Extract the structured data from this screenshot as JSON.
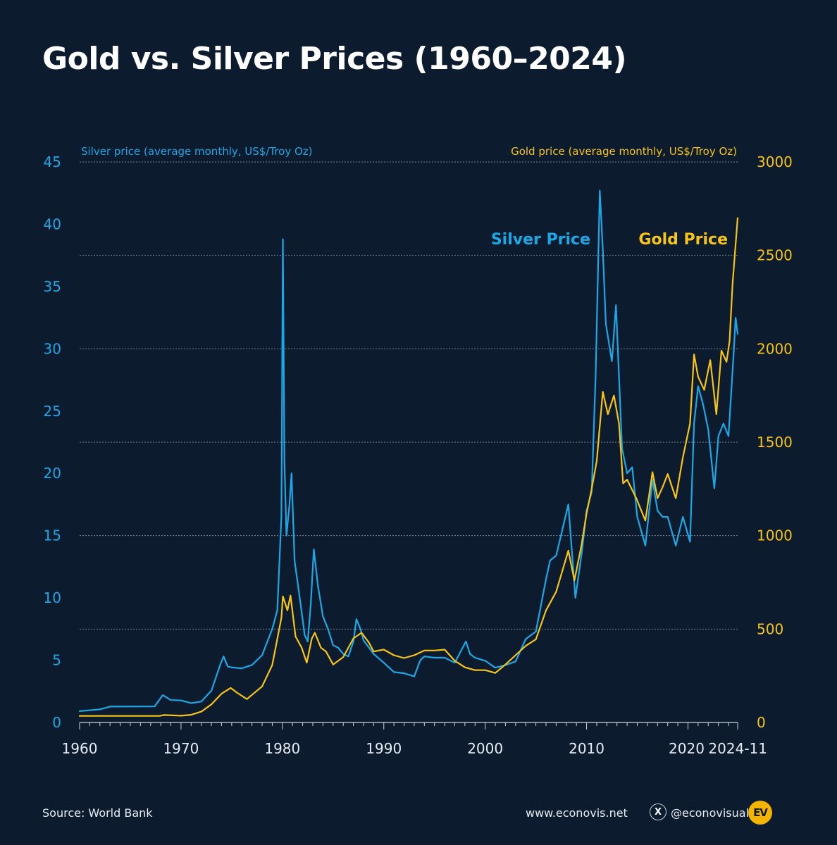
{
  "title": "Gold vs. Silver Prices (1960–2024)",
  "footer": {
    "source": "Source: World Bank",
    "website": "www.econovis.net",
    "x_glyph": "X",
    "handle": "@econovisuals",
    "logo_text": "EV"
  },
  "colors": {
    "background": "#0c1b2e",
    "silver": "#1ca8e6",
    "gold": "#f7c417",
    "grid": "#7a8796"
  },
  "chart_data": {
    "type": "line",
    "x_range": [
      1960,
      2024.9
    ],
    "x_ticks": [
      1960,
      1970,
      1980,
      1990,
      2000,
      2010,
      2020,
      2024.9
    ],
    "x_tick_labels": [
      "1960",
      "1970",
      "1980",
      "1990",
      "2000",
      "2010",
      "2020",
      "2024-11"
    ],
    "grid": "horizontal dashed",
    "left_axis": {
      "label": "Silver price (average monthly, US$/Troy Oz)",
      "range": [
        0,
        45
      ],
      "ticks": [
        0,
        5,
        10,
        15,
        20,
        25,
        30,
        35,
        40,
        45
      ]
    },
    "right_axis": {
      "label": "Gold price (average monthly, US$/Troy Oz)",
      "range": [
        0,
        3000
      ],
      "ticks": [
        0,
        500,
        1000,
        1500,
        2000,
        2500,
        3000
      ]
    },
    "series": [
      {
        "name": "Silver Price",
        "axis": "left",
        "color": "#1ca8e6",
        "points": [
          [
            1960,
            0.91
          ],
          [
            1962,
            1.05
          ],
          [
            1963,
            1.28
          ],
          [
            1967.4,
            1.29
          ],
          [
            1968.2,
            2.2
          ],
          [
            1969,
            1.8
          ],
          [
            1970,
            1.77
          ],
          [
            1971,
            1.55
          ],
          [
            1972,
            1.68
          ],
          [
            1973,
            2.56
          ],
          [
            1973.9,
            4.7
          ],
          [
            1974.2,
            5.3
          ],
          [
            1974.6,
            4.5
          ],
          [
            1975,
            4.42
          ],
          [
            1976,
            4.35
          ],
          [
            1977,
            4.62
          ],
          [
            1978,
            5.4
          ],
          [
            1979,
            7.5
          ],
          [
            1979.5,
            9.0
          ],
          [
            1979.9,
            16.5
          ],
          [
            1980.05,
            38.8
          ],
          [
            1980.2,
            21.0
          ],
          [
            1980.4,
            15.0
          ],
          [
            1980.7,
            17.5
          ],
          [
            1980.9,
            20.0
          ],
          [
            1981.2,
            13.0
          ],
          [
            1981.8,
            9.5
          ],
          [
            1982.2,
            7.0
          ],
          [
            1982.5,
            6.5
          ],
          [
            1982.8,
            9.5
          ],
          [
            1983.1,
            13.9
          ],
          [
            1983.5,
            11.0
          ],
          [
            1984,
            8.5
          ],
          [
            1984.5,
            7.5
          ],
          [
            1985,
            6.2
          ],
          [
            1985.5,
            6.0
          ],
          [
            1986,
            5.5
          ],
          [
            1986.5,
            5.3
          ],
          [
            1987,
            6.5
          ],
          [
            1987.3,
            8.3
          ],
          [
            1987.7,
            7.5
          ],
          [
            1988,
            6.6
          ],
          [
            1989,
            5.5
          ],
          [
            1990,
            4.8
          ],
          [
            1991,
            4.05
          ],
          [
            1992,
            3.95
          ],
          [
            1993,
            3.7
          ],
          [
            1993.6,
            5.0
          ],
          [
            1994,
            5.3
          ],
          [
            1995,
            5.2
          ],
          [
            1996,
            5.2
          ],
          [
            1997,
            4.8
          ],
          [
            1998.1,
            6.5
          ],
          [
            1998.5,
            5.5
          ],
          [
            1999,
            5.2
          ],
          [
            2000,
            4.95
          ],
          [
            2001,
            4.4
          ],
          [
            2002,
            4.6
          ],
          [
            2003,
            4.9
          ],
          [
            2004,
            6.7
          ],
          [
            2005,
            7.3
          ],
          [
            2006,
            11.5
          ],
          [
            2006.4,
            13.0
          ],
          [
            2007,
            13.4
          ],
          [
            2008.2,
            17.5
          ],
          [
            2008.9,
            10.0
          ],
          [
            2009.5,
            13.5
          ],
          [
            2010,
            17.0
          ],
          [
            2010.5,
            18.5
          ],
          [
            2010.9,
            28.0
          ],
          [
            2011.3,
            42.7
          ],
          [
            2011.6,
            38.0
          ],
          [
            2011.9,
            32.0
          ],
          [
            2012.5,
            29.0
          ],
          [
            2012.9,
            33.5
          ],
          [
            2013.5,
            22.0
          ],
          [
            2014,
            20.0
          ],
          [
            2014.5,
            20.5
          ],
          [
            2015,
            16.5
          ],
          [
            2015.8,
            14.2
          ],
          [
            2016.5,
            19.5
          ],
          [
            2017,
            17.0
          ],
          [
            2017.5,
            16.5
          ],
          [
            2018,
            16.5
          ],
          [
            2018.8,
            14.2
          ],
          [
            2019.5,
            16.5
          ],
          [
            2020.2,
            14.5
          ],
          [
            2020.6,
            24.0
          ],
          [
            2021,
            27.0
          ],
          [
            2021.5,
            25.5
          ],
          [
            2022,
            23.5
          ],
          [
            2022.6,
            18.8
          ],
          [
            2023,
            23.0
          ],
          [
            2023.5,
            24.0
          ],
          [
            2024,
            23.0
          ],
          [
            2024.5,
            29.5
          ],
          [
            2024.7,
            32.5
          ],
          [
            2024.9,
            31.2
          ]
        ]
      },
      {
        "name": "Gold Price",
        "axis": "right",
        "color": "#f7c417",
        "points": [
          [
            1960,
            35
          ],
          [
            1967.9,
            35
          ],
          [
            1968.3,
            40
          ],
          [
            1970,
            36
          ],
          [
            1971,
            41
          ],
          [
            1972,
            58
          ],
          [
            1973,
            97
          ],
          [
            1974,
            154
          ],
          [
            1974.9,
            185
          ],
          [
            1975.5,
            160
          ],
          [
            1976.5,
            125
          ],
          [
            1977,
            148
          ],
          [
            1978,
            193
          ],
          [
            1979,
            307
          ],
          [
            1979.9,
            560
          ],
          [
            1980.05,
            675
          ],
          [
            1980.5,
            600
          ],
          [
            1980.8,
            680
          ],
          [
            1981.3,
            460
          ],
          [
            1981.9,
            400
          ],
          [
            1982.4,
            320
          ],
          [
            1982.9,
            450
          ],
          [
            1983.2,
            480
          ],
          [
            1983.8,
            400
          ],
          [
            1984.3,
            380
          ],
          [
            1985,
            310
          ],
          [
            1986,
            350
          ],
          [
            1987,
            450
          ],
          [
            1987.8,
            480
          ],
          [
            1988.5,
            430
          ],
          [
            1989,
            380
          ],
          [
            1990,
            390
          ],
          [
            1991,
            360
          ],
          [
            1992,
            345
          ],
          [
            1993,
            360
          ],
          [
            1994,
            385
          ],
          [
            1995,
            385
          ],
          [
            1996,
            390
          ],
          [
            1997,
            330
          ],
          [
            1998,
            295
          ],
          [
            1999,
            280
          ],
          [
            2000,
            280
          ],
          [
            2001,
            265
          ],
          [
            2002,
            310
          ],
          [
            2003,
            360
          ],
          [
            2004,
            410
          ],
          [
            2005,
            445
          ],
          [
            2006,
            600
          ],
          [
            2007,
            700
          ],
          [
            2008.2,
            920
          ],
          [
            2008.8,
            760
          ],
          [
            2009.5,
            950
          ],
          [
            2010,
            1120
          ],
          [
            2010.5,
            1250
          ],
          [
            2011,
            1400
          ],
          [
            2011.6,
            1770
          ],
          [
            2012.1,
            1650
          ],
          [
            2012.7,
            1750
          ],
          [
            2013.2,
            1600
          ],
          [
            2013.6,
            1280
          ],
          [
            2014,
            1300
          ],
          [
            2014.9,
            1200
          ],
          [
            2015.8,
            1080
          ],
          [
            2016.5,
            1340
          ],
          [
            2017,
            1200
          ],
          [
            2017.5,
            1260
          ],
          [
            2018,
            1330
          ],
          [
            2018.8,
            1200
          ],
          [
            2019.5,
            1420
          ],
          [
            2020.2,
            1600
          ],
          [
            2020.6,
            1970
          ],
          [
            2021,
            1850
          ],
          [
            2021.6,
            1780
          ],
          [
            2022.2,
            1940
          ],
          [
            2022.8,
            1650
          ],
          [
            2023.3,
            1990
          ],
          [
            2023.8,
            1930
          ],
          [
            2024.1,
            2040
          ],
          [
            2024.4,
            2350
          ],
          [
            2024.9,
            2700
          ]
        ]
      }
    ],
    "annotations": [
      {
        "text": "Silver Price",
        "color": "#1ca8e6"
      },
      {
        "text": "Gold Price",
        "color": "#f7c417"
      }
    ]
  }
}
